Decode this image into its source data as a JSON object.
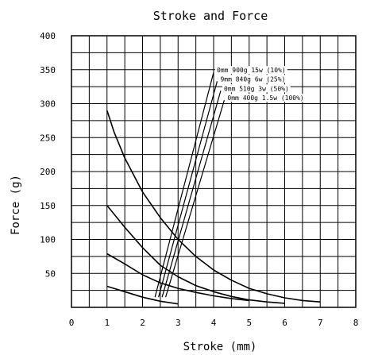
{
  "chart_data": {
    "type": "line",
    "title": "Stroke and Force",
    "xlabel": "Stroke (mm)",
    "ylabel": "Force (g)",
    "xlim": [
      0,
      8
    ],
    "ylim": [
      0,
      400
    ],
    "x_ticks": [
      0,
      1,
      2,
      3,
      4,
      5,
      6,
      7,
      8
    ],
    "y_ticks": [
      50,
      100,
      150,
      200,
      250,
      300,
      350,
      400
    ],
    "grid": true,
    "x_minor_step": 0.5,
    "y_minor_step": 25,
    "series": [
      {
        "x": [
          1,
          1.2,
          1.5,
          2.0,
          2.5,
          3.0,
          3.5,
          4.0,
          4.5,
          5.0,
          5.5,
          6.0,
          6.5,
          7.0
        ],
        "y": [
          290,
          258,
          220,
          170,
          132,
          100,
          75,
          55,
          40,
          28,
          20,
          14,
          10,
          8
        ]
      },
      {
        "x": [
          1,
          1.5,
          2.0,
          2.5,
          3.0,
          3.5,
          4.0,
          4.5,
          5.0,
          5.5,
          6.0
        ],
        "y": [
          150,
          118,
          88,
          62,
          45,
          32,
          23,
          16,
          11,
          8,
          6
        ]
      },
      {
        "x": [
          1,
          1.5,
          2.0,
          2.5,
          3.0,
          3.5,
          4.0,
          4.5,
          5.0
        ],
        "y": [
          79,
          64,
          48,
          36,
          28,
          22,
          17,
          13,
          10
        ]
      },
      {
        "x": [
          1,
          1.5,
          2.0,
          2.5,
          3.0
        ],
        "y": [
          31,
          23,
          15,
          9,
          5
        ]
      }
    ],
    "annotations": [
      {
        "text": "0mm 900g 15w (10%)",
        "leader": [
          [
            2.35,
            15
          ],
          [
            4.0,
            346
          ]
        ]
      },
      {
        "text": "9mm 840g 6w (25%)",
        "leader": [
          [
            2.45,
            15
          ],
          [
            4.1,
            333
          ]
        ]
      },
      {
        "text": "0mm 510g 3w (50%)",
        "leader": [
          [
            2.55,
            15
          ],
          [
            4.2,
            319
          ]
        ]
      },
      {
        "text": "0mm 400g 1.5w (100%)",
        "leader": [
          [
            2.65,
            15
          ],
          [
            4.3,
            305
          ]
        ]
      }
    ]
  },
  "colors": {
    "line": "#000000",
    "grid": "#000000",
    "background": "#ffffff"
  }
}
